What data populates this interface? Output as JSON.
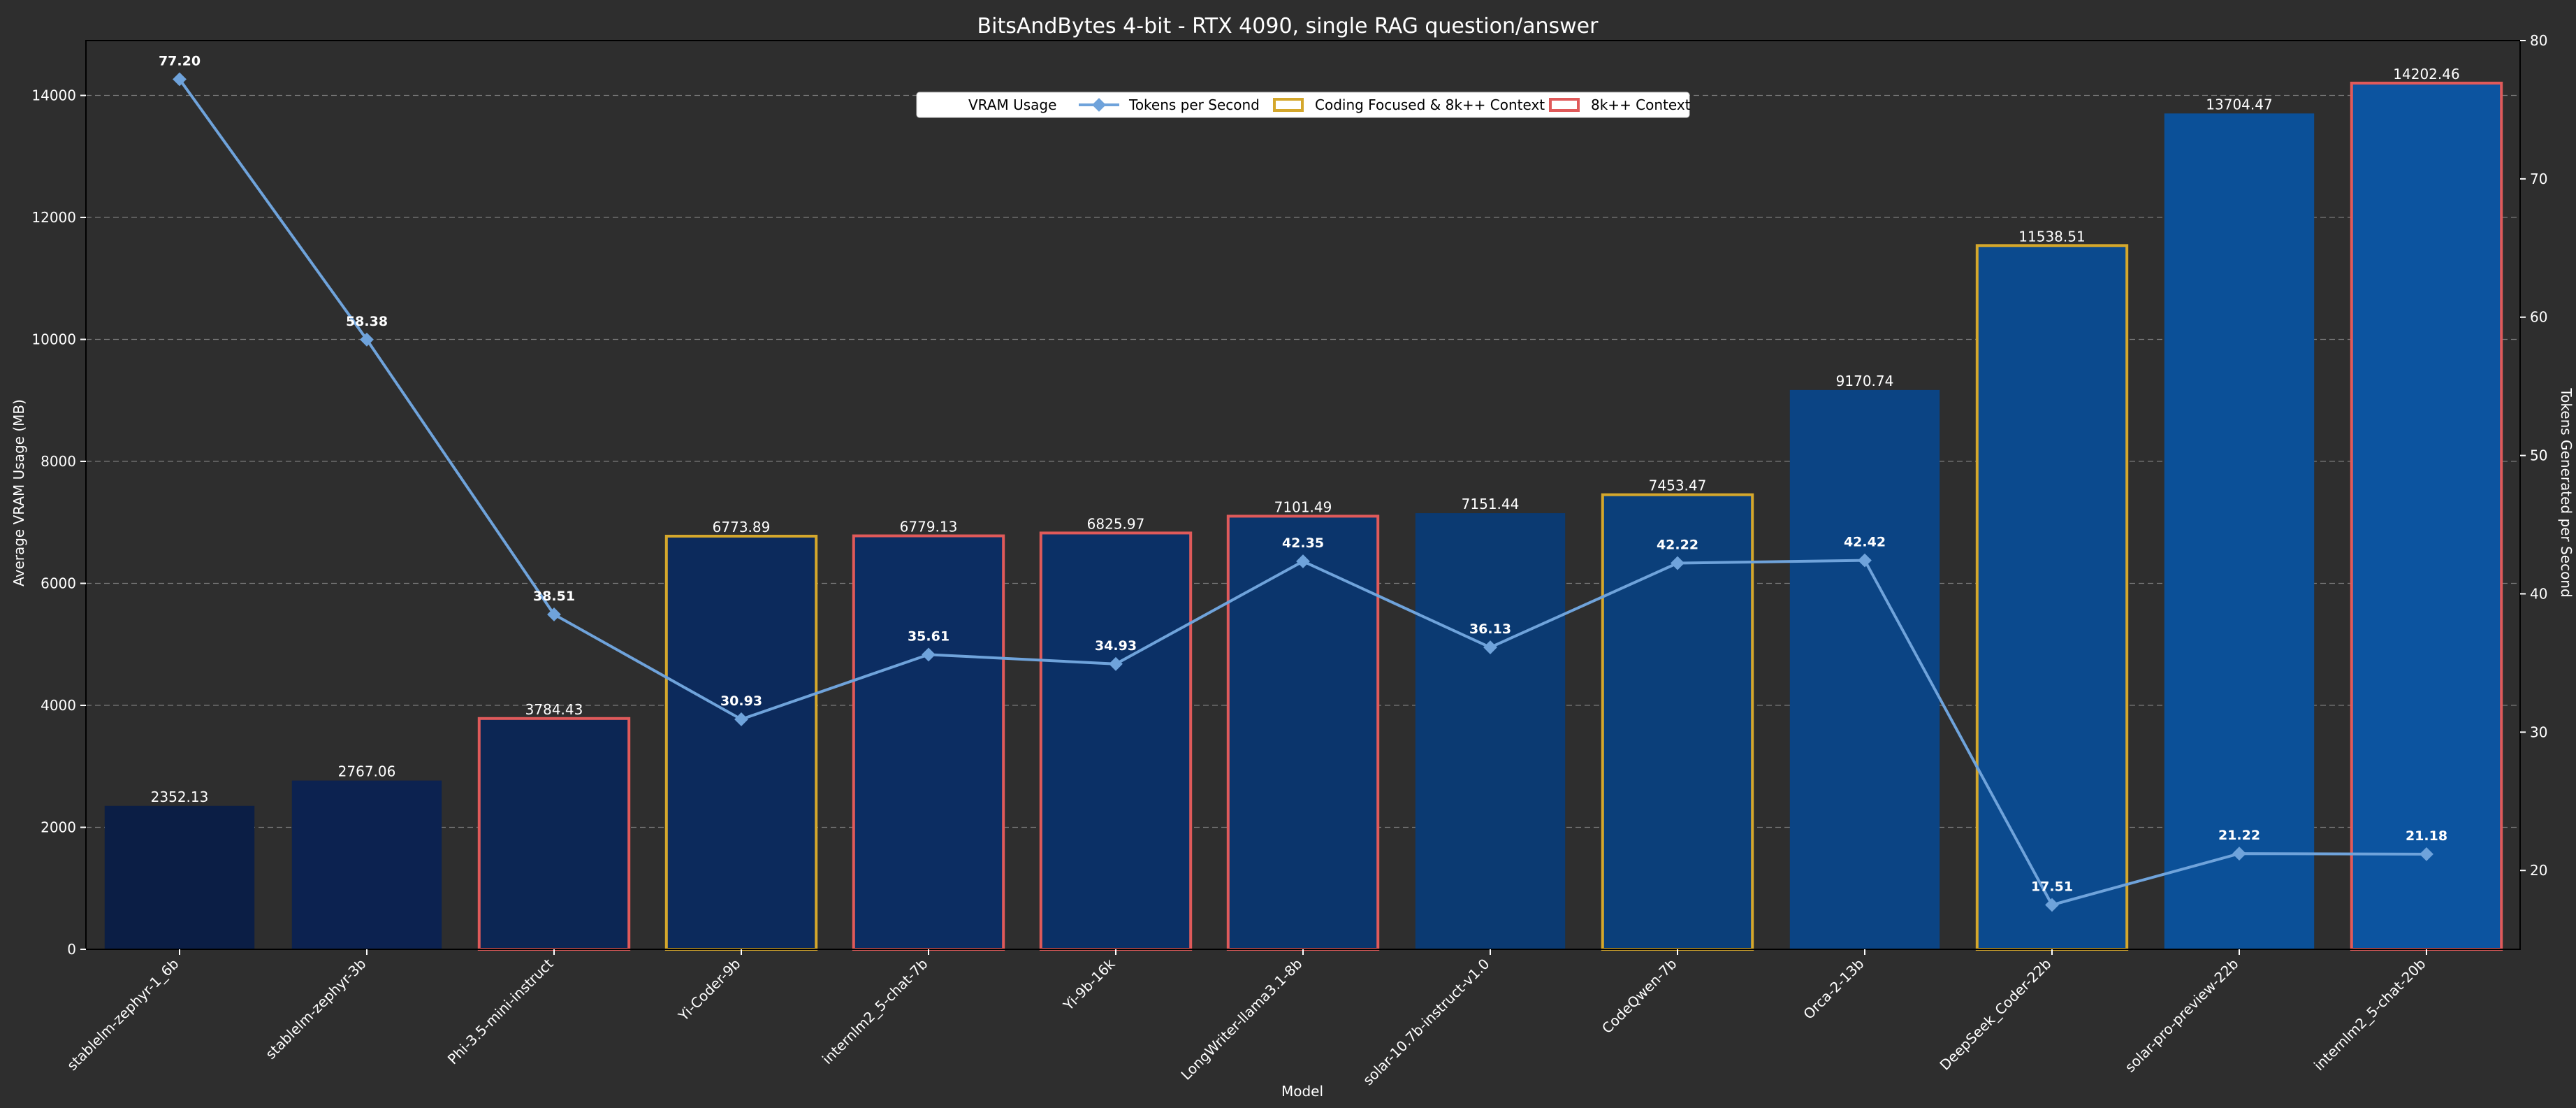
{
  "chart_data": {
    "type": "bar+line",
    "title": "BitsAndBytes 4-bit - RTX 4090, single RAG question/answer",
    "xlabel": "Model",
    "ylabel": "Average VRAM Usage (MB)",
    "y2label": "Tokens Generated per Second",
    "ylim": [
      0,
      14900
    ],
    "y2lim": [
      14.3,
      80
    ],
    "yticks": [
      0,
      2000,
      4000,
      6000,
      8000,
      10000,
      12000,
      14000
    ],
    "y2ticks": [
      20,
      30,
      40,
      50,
      60,
      70,
      80
    ],
    "grid": true,
    "legend_position": "top-center",
    "categories": [
      "stablelm-zephyr-1_6b",
      "stablelm-zephyr-3b",
      "Phi-3.5-mini-instruct",
      "Yi-Coder-9b",
      "internlm2_5-chat-7b",
      "Yi-9b-16k",
      "LongWriter-llama3.1-8b",
      "solar-10.7b-instruct-v1.0",
      "CodeQwen-7b",
      "Orca-2-13b",
      "DeepSeek_Coder-22b",
      "solar-pro-preview-22b",
      "internlm2_5-chat-20b"
    ],
    "series": [
      {
        "name": "VRAM Usage",
        "kind": "bar",
        "axis": "left",
        "values": [
          2352.13,
          2767.06,
          3784.43,
          6773.89,
          6779.13,
          6825.97,
          7101.49,
          7151.44,
          7453.47,
          9170.74,
          11538.51,
          13704.47,
          14202.46
        ],
        "labels": [
          "2352.13",
          "2767.06",
          "3784.43",
          "6773.89",
          "6779.13",
          "6825.97",
          "7101.49",
          "7151.44",
          "7453.47",
          "9170.74",
          "11538.51",
          "13704.47",
          "14202.46"
        ],
        "colors": [
          "#0b1e45",
          "#0c2250",
          "#0c2654",
          "#0c2a5c",
          "#0c2d62",
          "#0b3066",
          "#0b356c",
          "#0b3a72",
          "#0b3f7a",
          "#0b4484",
          "#0b4a8e",
          "#0b5098",
          "#0c54a0"
        ],
        "outline": [
          "none",
          "none",
          "8k",
          "coding",
          "8k",
          "8k",
          "8k",
          "none",
          "coding",
          "none",
          "coding",
          "none",
          "8k"
        ]
      },
      {
        "name": "Tokens per Second",
        "kind": "line",
        "axis": "right",
        "color": "#6fa3db",
        "values": [
          77.2,
          58.38,
          38.51,
          30.93,
          35.61,
          34.93,
          42.35,
          36.13,
          42.22,
          42.42,
          17.51,
          21.22,
          21.18
        ],
        "labels": [
          "77.20",
          "58.38",
          "38.51",
          "30.93",
          "35.61",
          "34.93",
          "42.35",
          "36.13",
          "42.22",
          "42.42",
          "17.51",
          "21.22",
          "21.18"
        ]
      }
    ],
    "legend": [
      {
        "label": "VRAM Usage",
        "kind": "bar"
      },
      {
        "label": "Tokens per Second",
        "kind": "line"
      },
      {
        "label": "Coding Focused & 8k++ Context",
        "kind": "outline",
        "color": "#d4a72c"
      },
      {
        "label": "8k++ Context",
        "kind": "outline",
        "color": "#e05a5a"
      }
    ],
    "colors": {
      "background": "#2e2e2e",
      "text": "#ffffff",
      "grid": "#7a7a7a",
      "coding_outline": "#d4a72c",
      "ctx_outline": "#e05a5a",
      "line": "#6fa3db"
    }
  }
}
